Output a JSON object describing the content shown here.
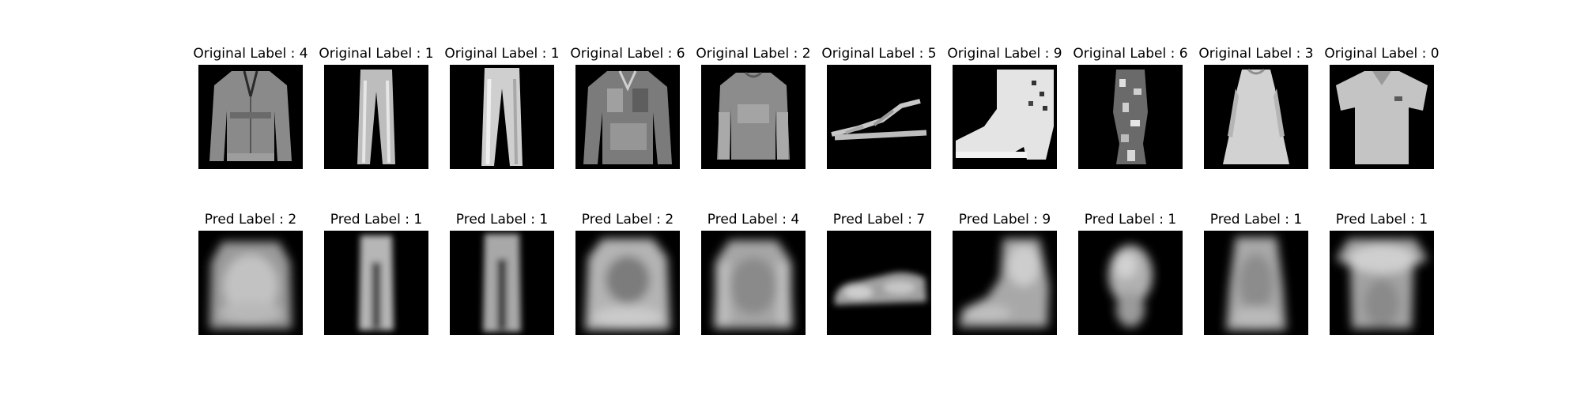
{
  "rows": [
    {
      "title_prefix": "Original Label : ",
      "items": [
        {
          "label": "4",
          "icon": "coat-icon"
        },
        {
          "label": "1",
          "icon": "trouser-icon"
        },
        {
          "label": "1",
          "icon": "trouser-icon"
        },
        {
          "label": "6",
          "icon": "shirt-icon"
        },
        {
          "label": "2",
          "icon": "pullover-icon"
        },
        {
          "label": "5",
          "icon": "sandal-icon"
        },
        {
          "label": "9",
          "icon": "ankle-boot-icon"
        },
        {
          "label": "6",
          "icon": "shirt-icon"
        },
        {
          "label": "3",
          "icon": "dress-icon"
        },
        {
          "label": "0",
          "icon": "tshirt-icon"
        }
      ]
    },
    {
      "title_prefix": "Pred Label : ",
      "items": [
        {
          "label": "2",
          "icon": "blurred-pullover-icon"
        },
        {
          "label": "1",
          "icon": "blurred-trouser-icon"
        },
        {
          "label": "1",
          "icon": "blurred-trouser-icon"
        },
        {
          "label": "2",
          "icon": "blurred-pullover-icon"
        },
        {
          "label": "4",
          "icon": "blurred-coat-icon"
        },
        {
          "label": "7",
          "icon": "blurred-sneaker-icon"
        },
        {
          "label": "9",
          "icon": "blurred-ankle-boot-icon"
        },
        {
          "label": "1",
          "icon": "blurred-blob-icon"
        },
        {
          "label": "1",
          "icon": "blurred-dress-icon"
        },
        {
          "label": "1",
          "icon": "blurred-tshirt-icon"
        }
      ]
    }
  ]
}
